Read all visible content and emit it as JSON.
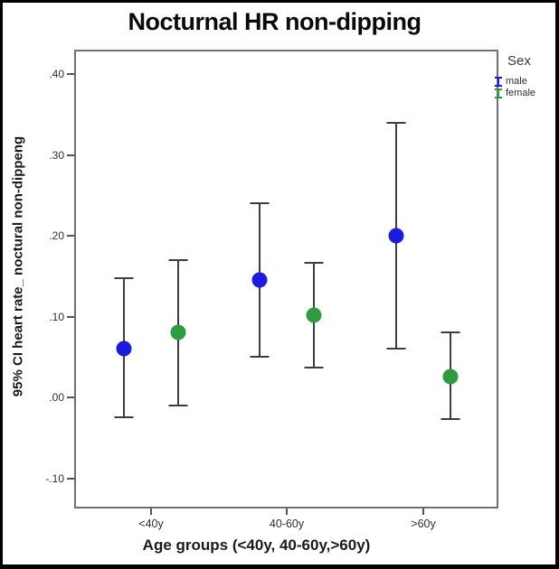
{
  "title": "Nocturnal HR non-dipping",
  "legend": {
    "title": "Sex",
    "items": [
      {
        "label": "male",
        "color": "#1c1ce0"
      },
      {
        "label": "female",
        "color": "#2e9b3e"
      }
    ]
  },
  "chart_data": {
    "type": "scatter",
    "subtype": "error-bar-95CI",
    "title": "Nocturnal HR non-dipping",
    "xlabel": "Age groups (<40y, 40-60y,>60y)",
    "ylabel": "95% CI heart rate_ noctural non-dippeng",
    "categories": [
      "<40y",
      "40-60y",
      ">60y"
    ],
    "series": [
      {
        "name": "male",
        "color": "#1c1ce0",
        "means": [
          0.06,
          0.145,
          0.2
        ],
        "ci_low": [
          -0.025,
          0.05,
          0.06
        ],
        "ci_high": [
          0.147,
          0.24,
          0.34
        ]
      },
      {
        "name": "female",
        "color": "#2e9b3e",
        "means": [
          0.08,
          0.102,
          0.026
        ],
        "ci_low": [
          -0.01,
          0.037,
          -0.027
        ],
        "ci_high": [
          0.17,
          0.167,
          0.08
        ]
      }
    ],
    "yticks": {
      "labels": [
        ".40",
        ".30",
        ".20",
        ".10",
        ".00",
        "-.10"
      ],
      "values": [
        0.4,
        0.3,
        0.2,
        0.1,
        0.0,
        -0.1
      ]
    },
    "ylim": [
      -0.135,
      0.43
    ],
    "grid": false,
    "legend_position": "right-top"
  }
}
